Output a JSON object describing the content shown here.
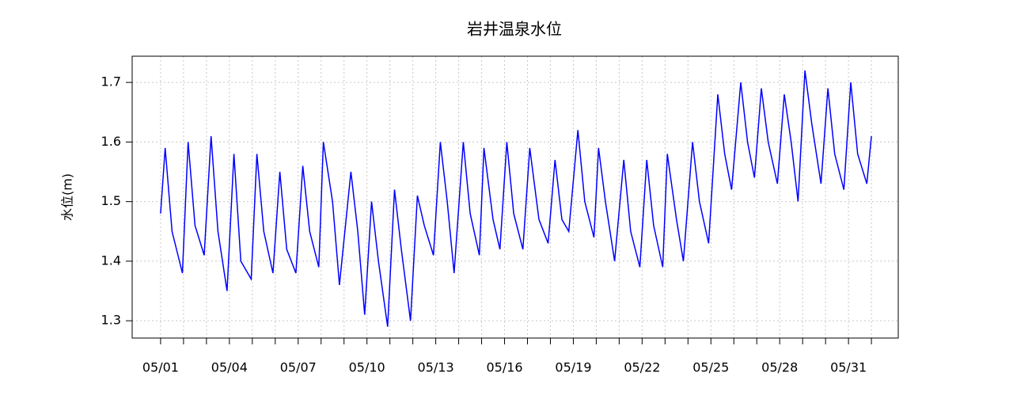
{
  "chart_data": {
    "type": "line",
    "title": "岩井温泉水位",
    "y_label": "水位(m)",
    "color": "#0000ff",
    "grid": true,
    "x": [
      0,
      0.2,
      0.5,
      0.95,
      1.2,
      1.5,
      1.9,
      2.2,
      2.5,
      2.9,
      3.2,
      3.5,
      3.95,
      4.2,
      4.5,
      4.9,
      5.2,
      5.5,
      5.9,
      6.2,
      6.5,
      6.9,
      7.1,
      7.5,
      7.8,
      8.3,
      8.6,
      8.9,
      9.2,
      9.5,
      9.9,
      10.2,
      10.5,
      10.9,
      11.2,
      11.5,
      11.9,
      12.2,
      12.5,
      12.8,
      13.2,
      13.5,
      13.9,
      14.1,
      14.5,
      14.8,
      15.1,
      15.4,
      15.8,
      16.1,
      16.5,
      16.9,
      17.2,
      17.5,
      17.8,
      18.2,
      18.5,
      18.9,
      19.1,
      19.4,
      19.8,
      20.2,
      20.5,
      20.9,
      21.2,
      21.5,
      21.9,
      22.1,
      22.5,
      22.8,
      23.2,
      23.5,
      23.9,
      24.3,
      24.6,
      24.9,
      25.3,
      25.6,
      25.9,
      26.2,
      26.5,
      26.9,
      27.2,
      27.5,
      27.8,
      28.1,
      28.4,
      28.8,
      29.1,
      29.4,
      29.8,
      30.1,
      30.4,
      30.8,
      31.0
    ],
    "values": [
      1.48,
      1.59,
      1.45,
      1.38,
      1.6,
      1.46,
      1.41,
      1.61,
      1.45,
      1.35,
      1.58,
      1.4,
      1.37,
      1.58,
      1.45,
      1.38,
      1.55,
      1.42,
      1.38,
      1.56,
      1.45,
      1.39,
      1.6,
      1.5,
      1.36,
      1.55,
      1.45,
      1.31,
      1.5,
      1.4,
      1.29,
      1.52,
      1.42,
      1.3,
      1.51,
      1.46,
      1.41,
      1.6,
      1.5,
      1.38,
      1.6,
      1.48,
      1.41,
      1.59,
      1.47,
      1.42,
      1.6,
      1.48,
      1.42,
      1.59,
      1.47,
      1.43,
      1.57,
      1.47,
      1.45,
      1.62,
      1.5,
      1.44,
      1.59,
      1.5,
      1.4,
      1.57,
      1.45,
      1.39,
      1.57,
      1.46,
      1.39,
      1.58,
      1.47,
      1.4,
      1.6,
      1.5,
      1.43,
      1.68,
      1.58,
      1.52,
      1.7,
      1.6,
      1.54,
      1.69,
      1.6,
      1.53,
      1.68,
      1.6,
      1.5,
      1.72,
      1.63,
      1.53,
      1.69,
      1.58,
      1.52,
      1.7,
      1.58,
      1.53,
      1.61
    ],
    "xlim": [
      -1.24,
      32.17
    ],
    "ylim": [
      1.271,
      1.744
    ],
    "xticks": [
      {
        "value": 0,
        "label": "05/01"
      },
      {
        "value": 3,
        "label": "05/04"
      },
      {
        "value": 6,
        "label": "05/07"
      },
      {
        "value": 9,
        "label": "05/10"
      },
      {
        "value": 12,
        "label": "05/13"
      },
      {
        "value": 15,
        "label": "05/16"
      },
      {
        "value": 18,
        "label": "05/19"
      },
      {
        "value": 21,
        "label": "05/22"
      },
      {
        "value": 24,
        "label": "05/25"
      },
      {
        "value": 27,
        "label": "05/28"
      },
      {
        "value": 30,
        "label": "05/31"
      }
    ],
    "xminorticks": [
      0,
      1,
      2,
      3,
      4,
      5,
      6,
      7,
      8,
      9,
      10,
      11,
      12,
      13,
      14,
      15,
      16,
      17,
      18,
      19,
      20,
      21,
      22,
      23,
      24,
      25,
      26,
      27,
      28,
      29,
      30,
      31
    ],
    "yticks": [
      1.3,
      1.4,
      1.5,
      1.6,
      1.7
    ]
  }
}
